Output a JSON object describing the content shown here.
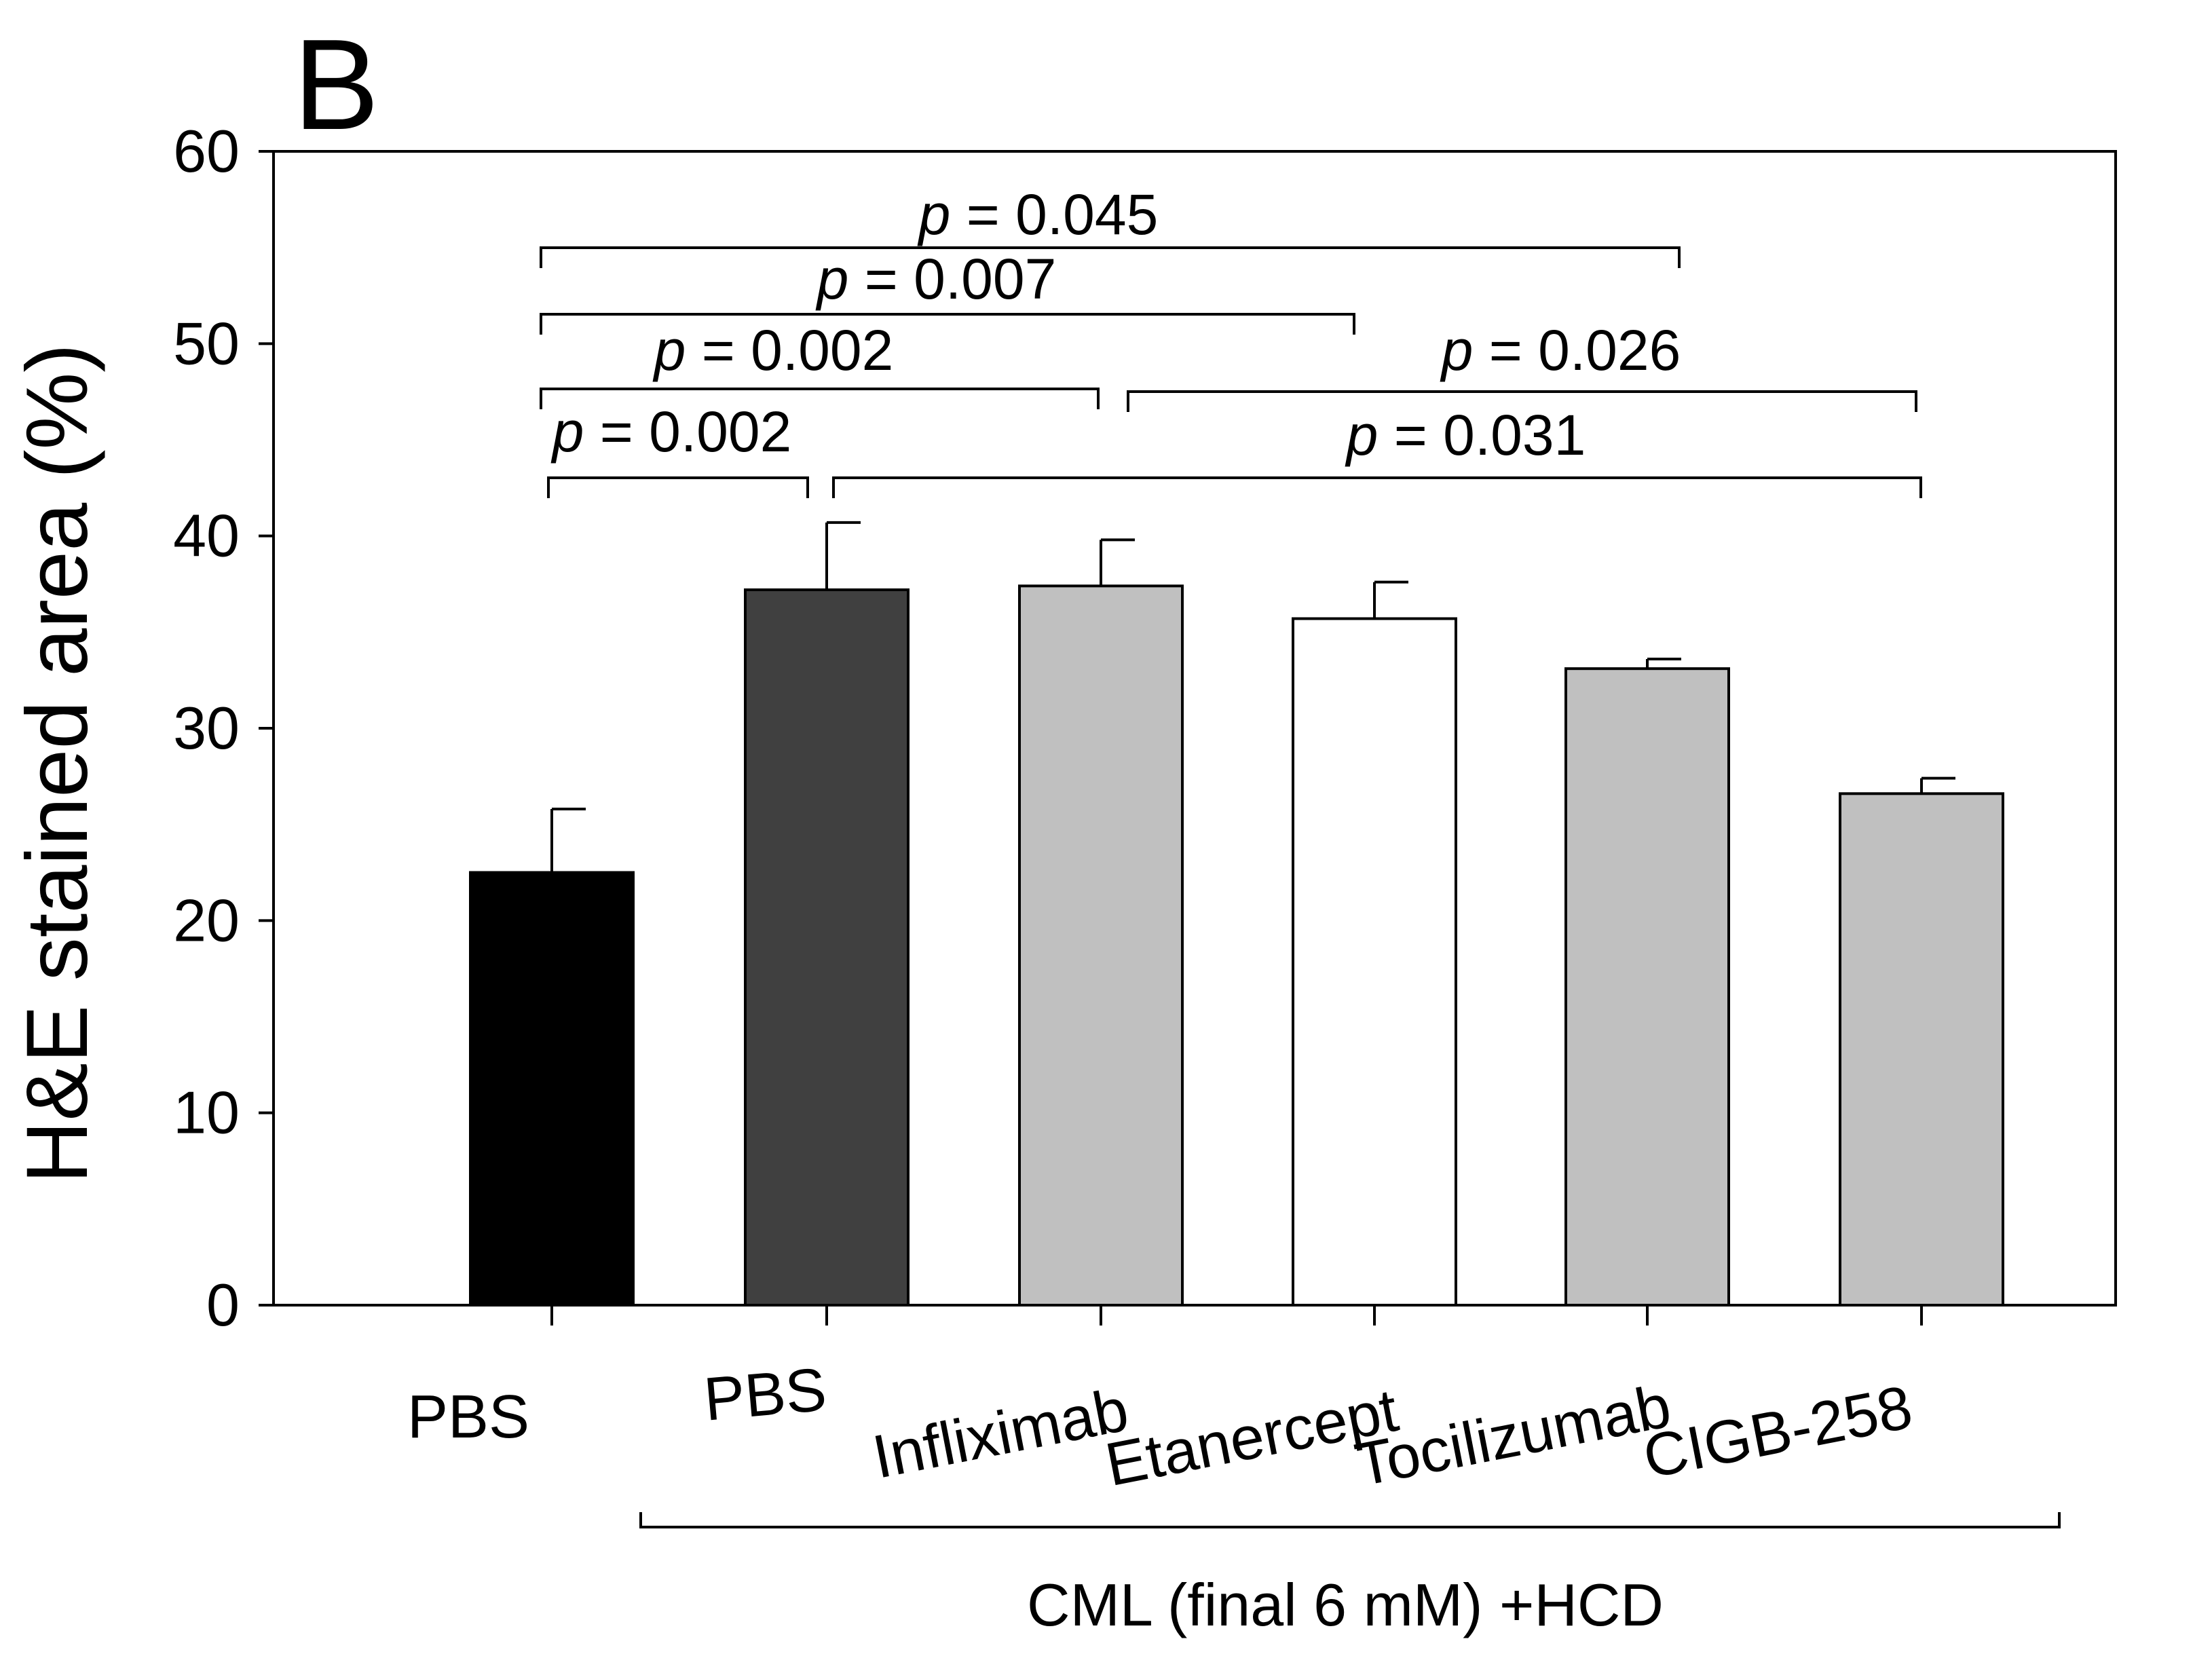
{
  "panel_label": "B",
  "group_label": "CML (final 6 mM) +HCD",
  "colors": {
    "axis": "#000000",
    "bar_edge": "#000000"
  },
  "chart_data": {
    "type": "bar",
    "title": "",
    "xlabel": "",
    "ylabel": "H&E stained area (%)",
    "ylim": [
      0,
      60
    ],
    "yticks": [
      0,
      10,
      20,
      30,
      40,
      50,
      60
    ],
    "categories": [
      "PBS",
      "PBS",
      "Infliximab",
      "Etanercept",
      "Tocilizumab",
      "CIGB-258"
    ],
    "values": [
      22.5,
      37.2,
      37.4,
      35.7,
      33.1,
      26.6
    ],
    "errors": [
      3.3,
      3.5,
      2.4,
      1.9,
      0.5,
      0.8
    ],
    "bar_colors": [
      "#000000",
      "#404040",
      "#c0c0c0",
      "#ffffff",
      "#c0c0c0",
      "#c0c0c0"
    ],
    "significance": [
      {
        "label_italic": "p",
        "label_rest": " = 0.045",
        "from": 0,
        "to": 4
      },
      {
        "label_italic": "p",
        "label_rest": " = 0.007",
        "from": 0,
        "to": 3
      },
      {
        "label_italic": "p",
        "label_rest": " = 0.002",
        "from": 0,
        "to": 2
      },
      {
        "label_italic": "p",
        "label_rest": " = 0.026",
        "from": 2,
        "to": 5
      },
      {
        "label_italic": "p",
        "label_rest": " = 0.002",
        "from": 0,
        "to": 1
      },
      {
        "label_italic": "p",
        "label_rest": " = 0.031",
        "from": 1,
        "to": 5
      }
    ]
  }
}
